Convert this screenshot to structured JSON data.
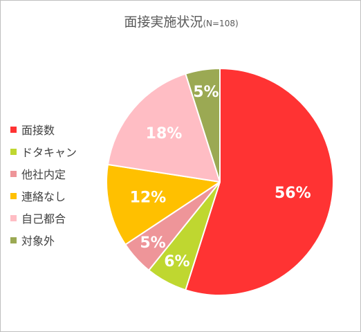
{
  "chart_data": {
    "type": "pie",
    "title": "面接実施状況",
    "subtitle": "(N=108)",
    "legend_position": "left",
    "categories": [
      "面接数",
      "ドタキャン",
      "他社内定",
      "連絡なし",
      "自己都合",
      "対象外"
    ],
    "values": [
      56,
      6,
      5,
      12,
      18,
      5
    ],
    "labels": [
      "56%",
      "6%",
      "5%",
      "12%",
      "18%",
      "5%"
    ],
    "colors": [
      "#FF3333",
      "#BFD730",
      "#EE9599",
      "#FFC000",
      "#FFBDC4",
      "#9BA953"
    ]
  }
}
